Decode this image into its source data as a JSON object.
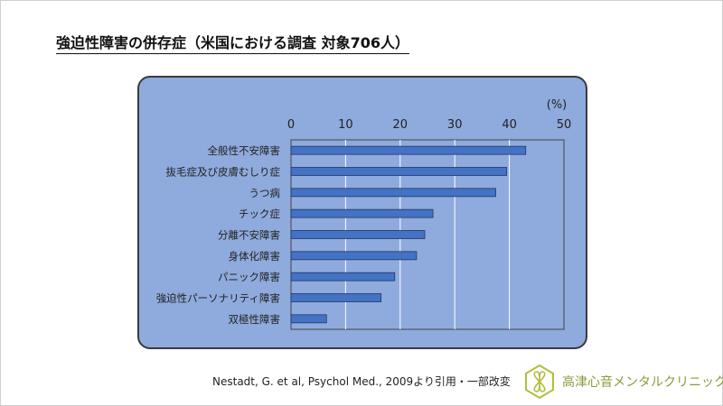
{
  "title": "強迫性障害の併存症（米国における調査  対象706人）",
  "citation": "Nestadt, G. et al, Psychol Med., 2009より引用・一部改変",
  "clinic_name": "高津心音メンタルクリニック",
  "colors": {
    "bar": "#4472c4",
    "bar_stroke": "#1f3864",
    "panel": "#8faadc",
    "plot_bg": "#8faadc",
    "grid": "#ffffff",
    "logo": "#b3bd3c"
  },
  "chart_data": {
    "type": "bar",
    "orientation": "horizontal",
    "unit_label": "(%)",
    "xlim": [
      0,
      50
    ],
    "x_ticks": [
      0,
      10,
      20,
      30,
      40,
      50
    ],
    "categories": [
      "全般性不安障害",
      "抜毛症及び皮膚むしり症",
      "うつ病",
      "チック症",
      "分離不安障害",
      "身体化障害",
      "パニック障害",
      "強迫性パーソナリティ障害",
      "双極性障害"
    ],
    "values": [
      43,
      39.5,
      37.5,
      26,
      24.5,
      23,
      19,
      16.5,
      6.5
    ],
    "grid": true
  }
}
